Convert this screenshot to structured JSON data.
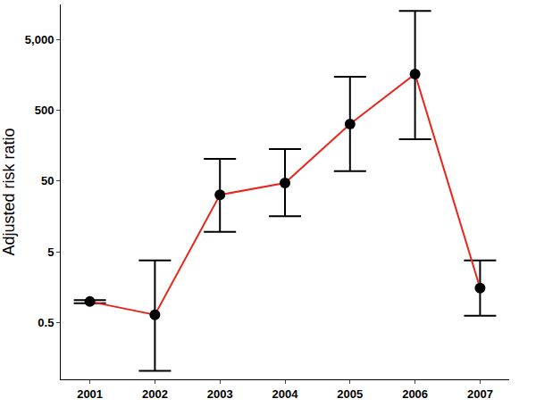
{
  "chart_data": {
    "type": "line",
    "y_label": "Adjusted risk ratio",
    "categories": [
      "2001",
      "2002",
      "2003",
      "2004",
      "2005",
      "2006",
      "2007"
    ],
    "values": [
      1.0,
      0.65,
      32,
      47,
      319,
      1615,
      1.55
    ],
    "ci_lower": [
      0.95,
      0.105,
      9.6,
      16,
      69,
      195,
      0.63
    ],
    "ci_upper": [
      1.05,
      3.8,
      103,
      142,
      1480,
      12600,
      3.8
    ],
    "color": "#e8261c",
    "marker": "circle",
    "line_style": "solid",
    "log": "y",
    "grid": false,
    "ylim": [
      0.08,
      15500
    ],
    "yticks": [
      0.5,
      5,
      50,
      500,
      {
        "value": 5000,
        "label": "5,000"
      }
    ]
  }
}
